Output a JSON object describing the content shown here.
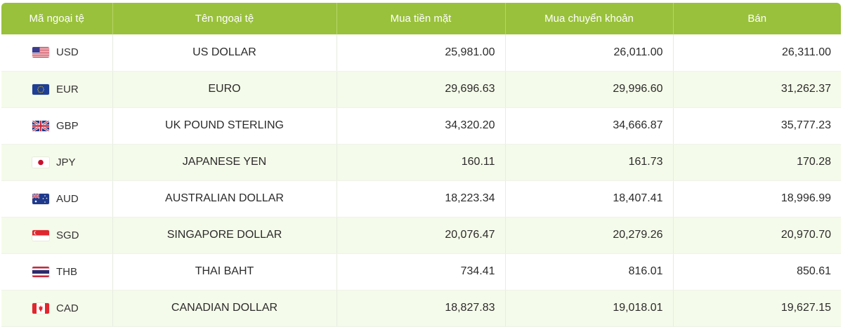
{
  "table": {
    "headers": [
      "Mã ngoại tệ",
      "Tên ngoại tệ",
      "Mua tiền mặt",
      "Mua chuyển khoản",
      "Bán"
    ],
    "rows": [
      {
        "flag_icon": "us-flag-icon",
        "code": "USD",
        "name": "US DOLLAR",
        "cash_buy": "25,981.00",
        "transfer_buy": "26,011.00",
        "sell": "26,311.00"
      },
      {
        "flag_icon": "eu-flag-icon",
        "code": "EUR",
        "name": "EURO",
        "cash_buy": "29,696.63",
        "transfer_buy": "29,996.60",
        "sell": "31,262.37"
      },
      {
        "flag_icon": "uk-flag-icon",
        "code": "GBP",
        "name": "UK POUND STERLING",
        "cash_buy": "34,320.20",
        "transfer_buy": "34,666.87",
        "sell": "35,777.23"
      },
      {
        "flag_icon": "japan-flag-icon",
        "code": "JPY",
        "name": "JAPANESE YEN",
        "cash_buy": "160.11",
        "transfer_buy": "161.73",
        "sell": "170.28"
      },
      {
        "flag_icon": "australia-flag-icon",
        "code": "AUD",
        "name": "AUSTRALIAN DOLLAR",
        "cash_buy": "18,223.34",
        "transfer_buy": "18,407.41",
        "sell": "18,996.99"
      },
      {
        "flag_icon": "singapore-flag-icon",
        "code": "SGD",
        "name": "SINGAPORE DOLLAR",
        "cash_buy": "20,076.47",
        "transfer_buy": "20,279.26",
        "sell": "20,970.70"
      },
      {
        "flag_icon": "thailand-flag-icon",
        "code": "THB",
        "name": "THAI BAHT",
        "cash_buy": "734.41",
        "transfer_buy": "816.01",
        "sell": "850.61"
      },
      {
        "flag_icon": "canada-flag-icon",
        "code": "CAD",
        "name": "CANADIAN DOLLAR",
        "cash_buy": "18,827.83",
        "transfer_buy": "19,018.01",
        "sell": "19,627.15"
      }
    ]
  },
  "colors": {
    "header_bg": "#99c13b",
    "alt_row_bg": "#f5fbea"
  }
}
